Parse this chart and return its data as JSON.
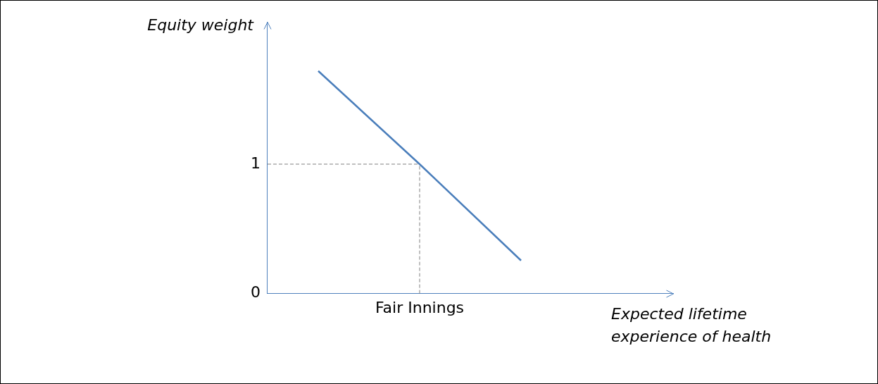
{
  "chart_data": {
    "type": "line",
    "ylabel": "Equity weight",
    "xlabel": "Expected lifetime experience of health",
    "categories": [
      null,
      "Fair Innings",
      null,
      null
    ],
    "series": [
      {
        "color": "#4a7ebb",
        "values": [
          1.72,
          1.0,
          0.255,
          null
        ]
      }
    ],
    "ylim": [
      0,
      2.1
    ],
    "yticks": [
      0,
      1
    ],
    "ref_lines": [
      {
        "axis": "y",
        "value": 1,
        "color": "#7f7f7f",
        "line_style": "dashed"
      },
      {
        "axis": "x",
        "value": "Fair Innings",
        "color": "#7f7f7f",
        "line_style": "dashed"
      }
    ],
    "grid": false,
    "legend": false,
    "marker": "none",
    "line_style": "solid"
  }
}
